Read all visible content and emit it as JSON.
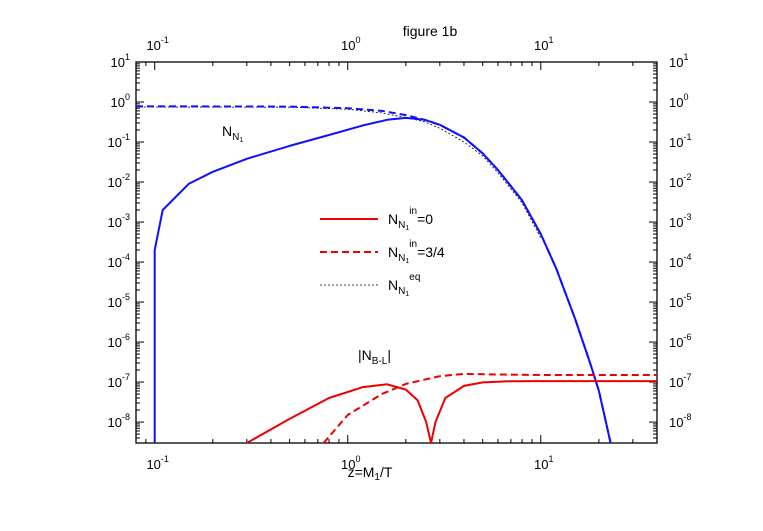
{
  "chart_data": {
    "type": "line",
    "title": "figure 1b",
    "xlabel": {
      "base": "z=M",
      "sub": "1",
      "tail": "/T"
    },
    "x_scale": "log",
    "y_scale": "log",
    "xlim": [
      0.08,
      40
    ],
    "ylim": [
      3e-09,
      10
    ],
    "x_ticks": [
      {
        "value": 0.1,
        "base": "10",
        "exp": "-1"
      },
      {
        "value": 1,
        "base": "10",
        "exp": "0"
      },
      {
        "value": 10,
        "base": "10",
        "exp": "1"
      }
    ],
    "y_ticks": [
      {
        "value": 10,
        "base": "10",
        "exp": "1"
      },
      {
        "value": 1,
        "base": "10",
        "exp": "0"
      },
      {
        "value": 0.1,
        "base": "10",
        "exp": "-1"
      },
      {
        "value": 0.01,
        "base": "10",
        "exp": "-2"
      },
      {
        "value": 0.001,
        "base": "10",
        "exp": "-3"
      },
      {
        "value": 0.0001,
        "base": "10",
        "exp": "-4"
      },
      {
        "value": 1e-05,
        "base": "10",
        "exp": "-5"
      },
      {
        "value": 1e-06,
        "base": "10",
        "exp": "-6"
      },
      {
        "value": 1e-07,
        "base": "10",
        "exp": "-7"
      },
      {
        "value": 1e-08,
        "base": "10",
        "exp": "-8"
      }
    ],
    "annotations": [
      {
        "id": "nn1",
        "base": "N",
        "sub": "N",
        "subsub": "1",
        "x": 0.17,
        "y": 0.13
      },
      {
        "id": "nbl",
        "text1": "|N",
        "sub": "B-L",
        "text2": "|",
        "x": 1.85,
        "y": 4e-07
      }
    ],
    "legend": {
      "placement": "center",
      "entries": [
        {
          "style": "solid-red",
          "base": "N",
          "sub": "N",
          "subsub": "1",
          "sup": "in",
          "tail": "=0"
        },
        {
          "style": "dashed-red",
          "base": "N",
          "sub": "N",
          "subsub": "1",
          "sup": "in",
          "tail": "=3/4"
        },
        {
          "style": "dotted-black",
          "base": "N",
          "sub": "N",
          "subsub": "1",
          "sup": "eq",
          "tail": ""
        }
      ]
    },
    "series": [
      {
        "id": "n_solid_blue",
        "color": "#1010ff",
        "style": "solid",
        "points": [
          [
            0.1,
            3e-09
          ],
          [
            0.1,
            0.0002
          ],
          [
            0.11,
            0.002
          ],
          [
            0.15,
            0.009
          ],
          [
            0.2,
            0.018
          ],
          [
            0.3,
            0.038
          ],
          [
            0.5,
            0.08
          ],
          [
            0.8,
            0.15
          ],
          [
            1.2,
            0.26
          ],
          [
            1.6,
            0.36
          ],
          [
            2,
            0.4
          ],
          [
            2.5,
            0.36
          ],
          [
            3,
            0.27
          ],
          [
            4,
            0.13
          ],
          [
            5,
            0.052
          ],
          [
            6,
            0.02
          ],
          [
            8,
            0.0035
          ],
          [
            10,
            0.0005
          ],
          [
            12,
            7e-05
          ],
          [
            15,
            4e-06
          ],
          [
            18,
            3e-07
          ],
          [
            20,
            6e-08
          ],
          [
            23,
            3e-09
          ]
        ]
      },
      {
        "id": "n_dashed_blue",
        "color": "#1010ff",
        "style": "dashed",
        "points": [
          [
            0.08,
            0.78
          ],
          [
            0.5,
            0.77
          ],
          [
            1,
            0.7
          ],
          [
            1.5,
            0.6
          ],
          [
            2,
            0.47
          ],
          [
            2.5,
            0.36
          ],
          [
            3,
            0.27
          ],
          [
            4,
            0.13
          ],
          [
            5,
            0.052
          ],
          [
            6,
            0.02
          ],
          [
            8,
            0.0035
          ],
          [
            10,
            0.0005
          ],
          [
            12,
            7e-05
          ],
          [
            15,
            4e-06
          ],
          [
            18,
            3e-07
          ],
          [
            20,
            6e-08
          ],
          [
            23,
            3e-09
          ]
        ]
      },
      {
        "id": "n_eq",
        "color": "#000000",
        "style": "dotted",
        "points": [
          [
            0.08,
            0.75
          ],
          [
            0.5,
            0.74
          ],
          [
            1,
            0.66
          ],
          [
            1.5,
            0.53
          ],
          [
            2,
            0.41
          ],
          [
            2.5,
            0.32
          ],
          [
            3,
            0.22
          ],
          [
            4,
            0.1
          ],
          [
            5,
            0.045
          ],
          [
            6,
            0.017
          ],
          [
            8,
            0.003
          ],
          [
            10,
            0.0004
          ]
        ]
      },
      {
        "id": "nbl_solid_red",
        "color": "#ee0000",
        "style": "solid",
        "points": [
          [
            0.3,
            3e-09
          ],
          [
            0.5,
            1.2e-08
          ],
          [
            0.8,
            4e-08
          ],
          [
            1.2,
            7.5e-08
          ],
          [
            1.6,
            8.8e-08
          ],
          [
            2,
            6.5e-08
          ],
          [
            2.3,
            3.5e-08
          ],
          [
            2.55,
            1e-08
          ],
          [
            2.7,
            3e-09
          ],
          [
            2.85,
            1e-08
          ],
          [
            3.2,
            4e-08
          ],
          [
            4,
            8e-08
          ],
          [
            5,
            9.8e-08
          ],
          [
            7,
            1.05e-07
          ],
          [
            10,
            1.06e-07
          ],
          [
            40,
            1.06e-07
          ]
        ]
      },
      {
        "id": "nbl_dashed_red",
        "color": "#ee0000",
        "style": "dashed",
        "points": [
          [
            0.75,
            3e-09
          ],
          [
            1,
            1.5e-08
          ],
          [
            1.5,
            5e-08
          ],
          [
            2,
            9e-08
          ],
          [
            3,
            1.4e-07
          ],
          [
            4,
            1.6e-07
          ],
          [
            6,
            1.55e-07
          ],
          [
            10,
            1.5e-07
          ],
          [
            40,
            1.5e-07
          ]
        ]
      }
    ]
  }
}
